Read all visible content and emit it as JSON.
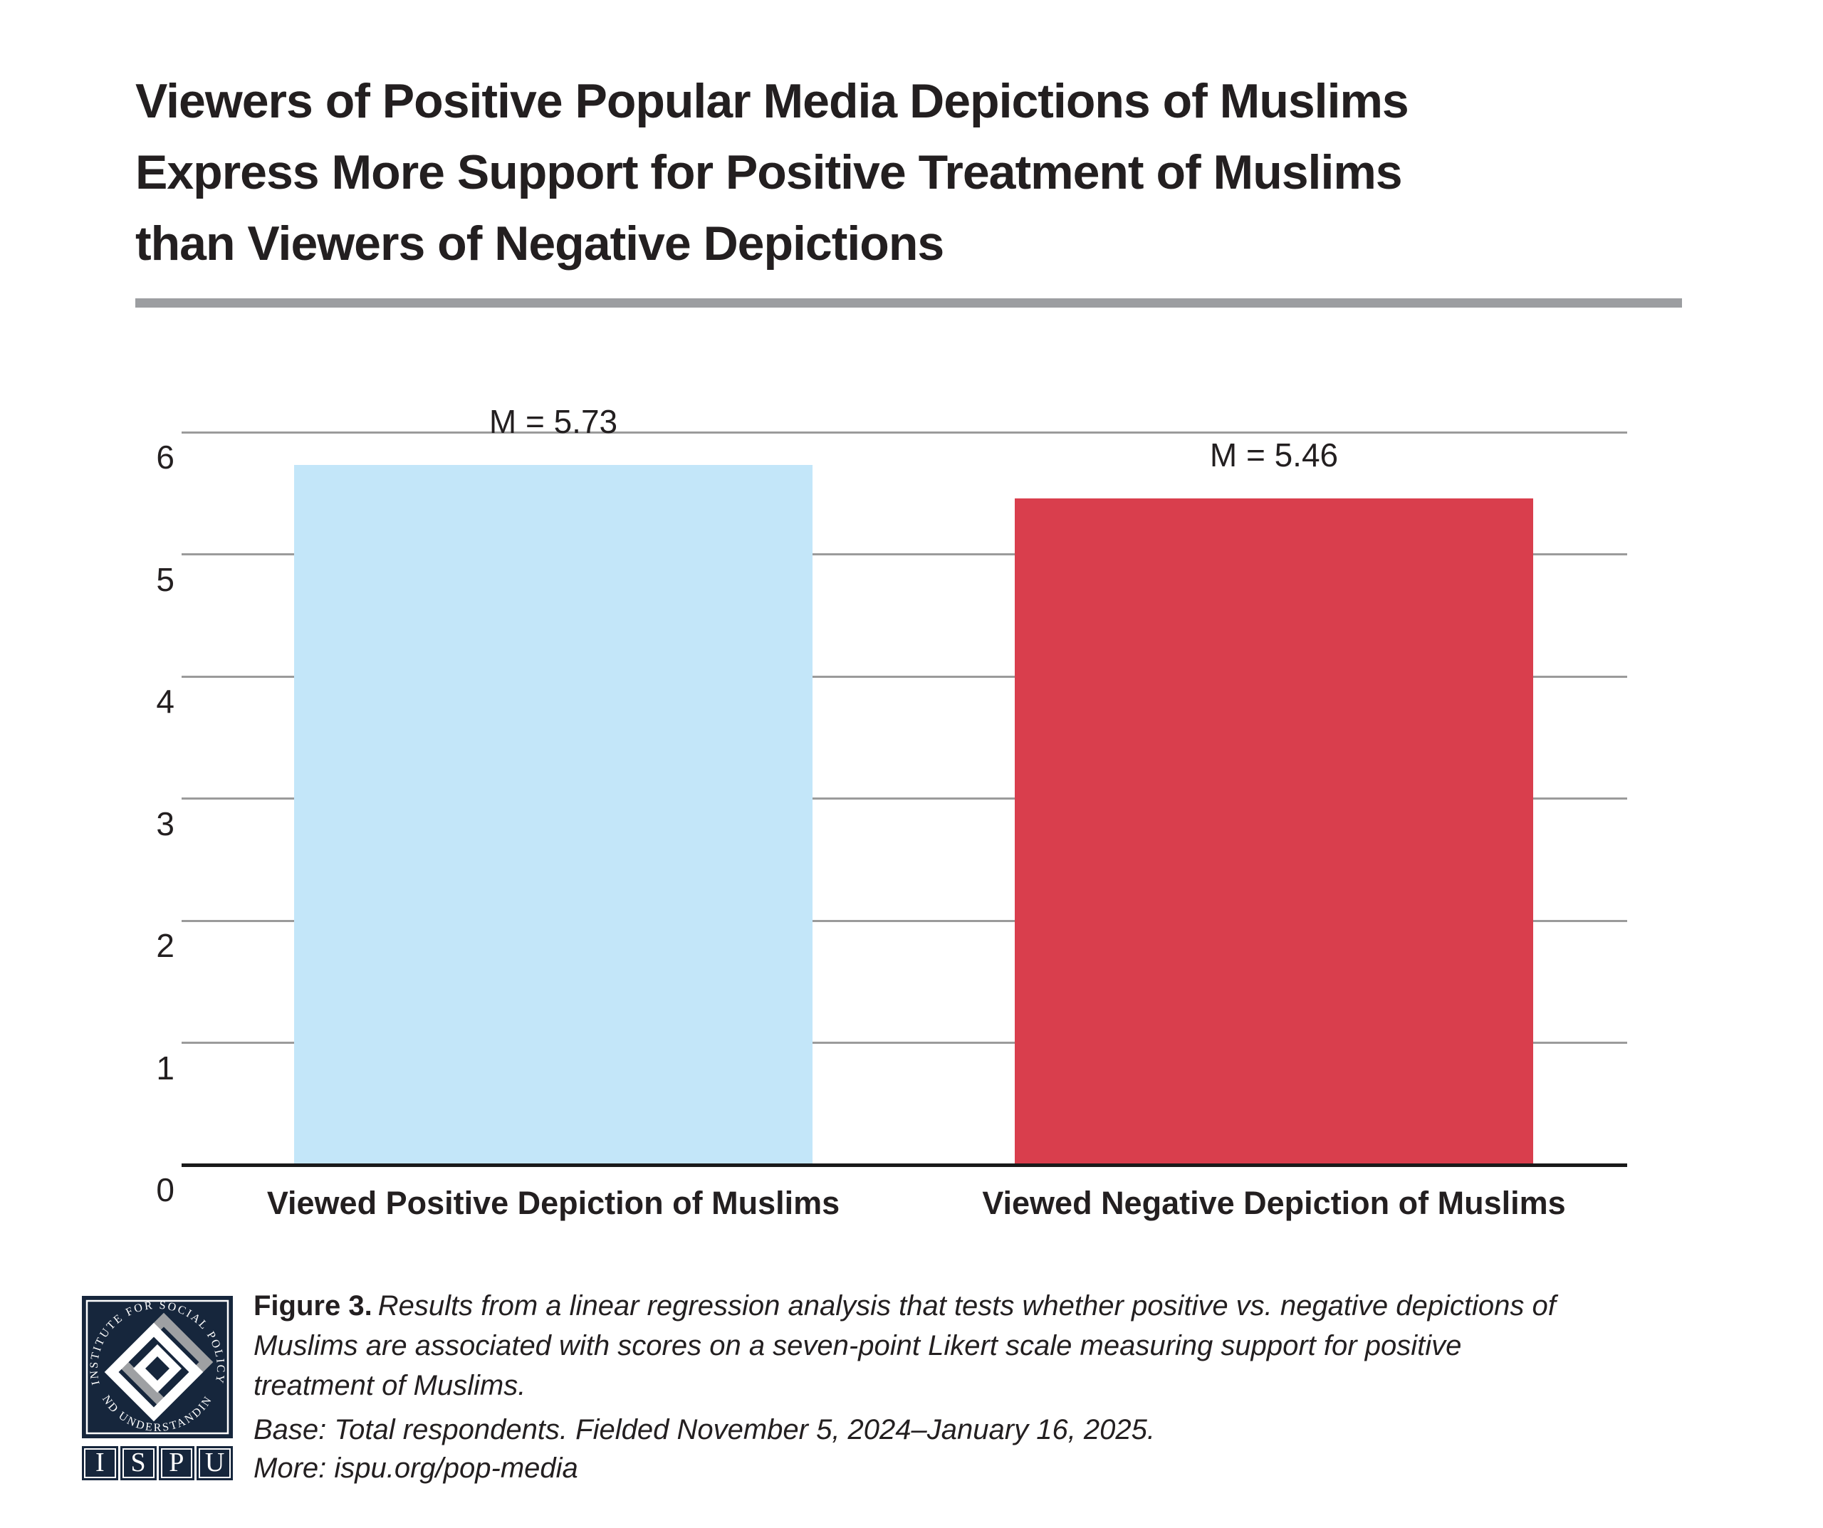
{
  "header": {
    "title_lines": [
      "Viewers of Positive Popular Media Depictions of Muslims",
      "Express More Support for Positive Treatment of Muslims",
      "than Viewers of Negative Depictions"
    ]
  },
  "chart_data": {
    "type": "bar",
    "title": "Viewers of Positive Popular Media Depictions of Muslims Express More Support for Positive Treatment of Muslims than Viewers of Negative Depictions",
    "categories": [
      "Viewed Positive Depiction of Muslims",
      "Viewed Negative Depiction of Muslims"
    ],
    "values": [
      5.73,
      5.46
    ],
    "value_labels": [
      "M = 5.73",
      "M = 5.46"
    ],
    "bar_colors": [
      "#C3E6F9",
      "#D93E4D"
    ],
    "yticks": [
      0,
      1,
      2,
      3,
      4,
      5,
      6
    ],
    "ylim": [
      0,
      6
    ],
    "xlabel": "",
    "ylabel": "",
    "grid": "horizontal",
    "legend": "none"
  },
  "footer": {
    "figure_label": "Figure 3.",
    "caption_lines": [
      "Results from a linear regression analysis that tests whether positive vs. negative depictions of",
      "Muslims are associated with scores on a seven-point Likert scale measuring support for positive",
      "treatment of Muslims."
    ],
    "base_note": "Base: Total respondents. Fielded November 5, 2024–January 16, 2025.",
    "more_note": "More: ispu.org/pop-media"
  },
  "logo": {
    "arc_top": "INSTITUTE FOR SOCIAL POLICY",
    "arc_bottom": "AND UNDERSTANDING",
    "letters": [
      "I",
      "S",
      "P",
      "U"
    ],
    "navy": "#16263C",
    "gray": "#9EA0A3"
  },
  "colors": {
    "text": "#231F20",
    "gridline": "#9B9B9B",
    "axis": "#1A1A1A",
    "divider_rule": "#9C9EA1",
    "background": "#FFFFFF"
  }
}
